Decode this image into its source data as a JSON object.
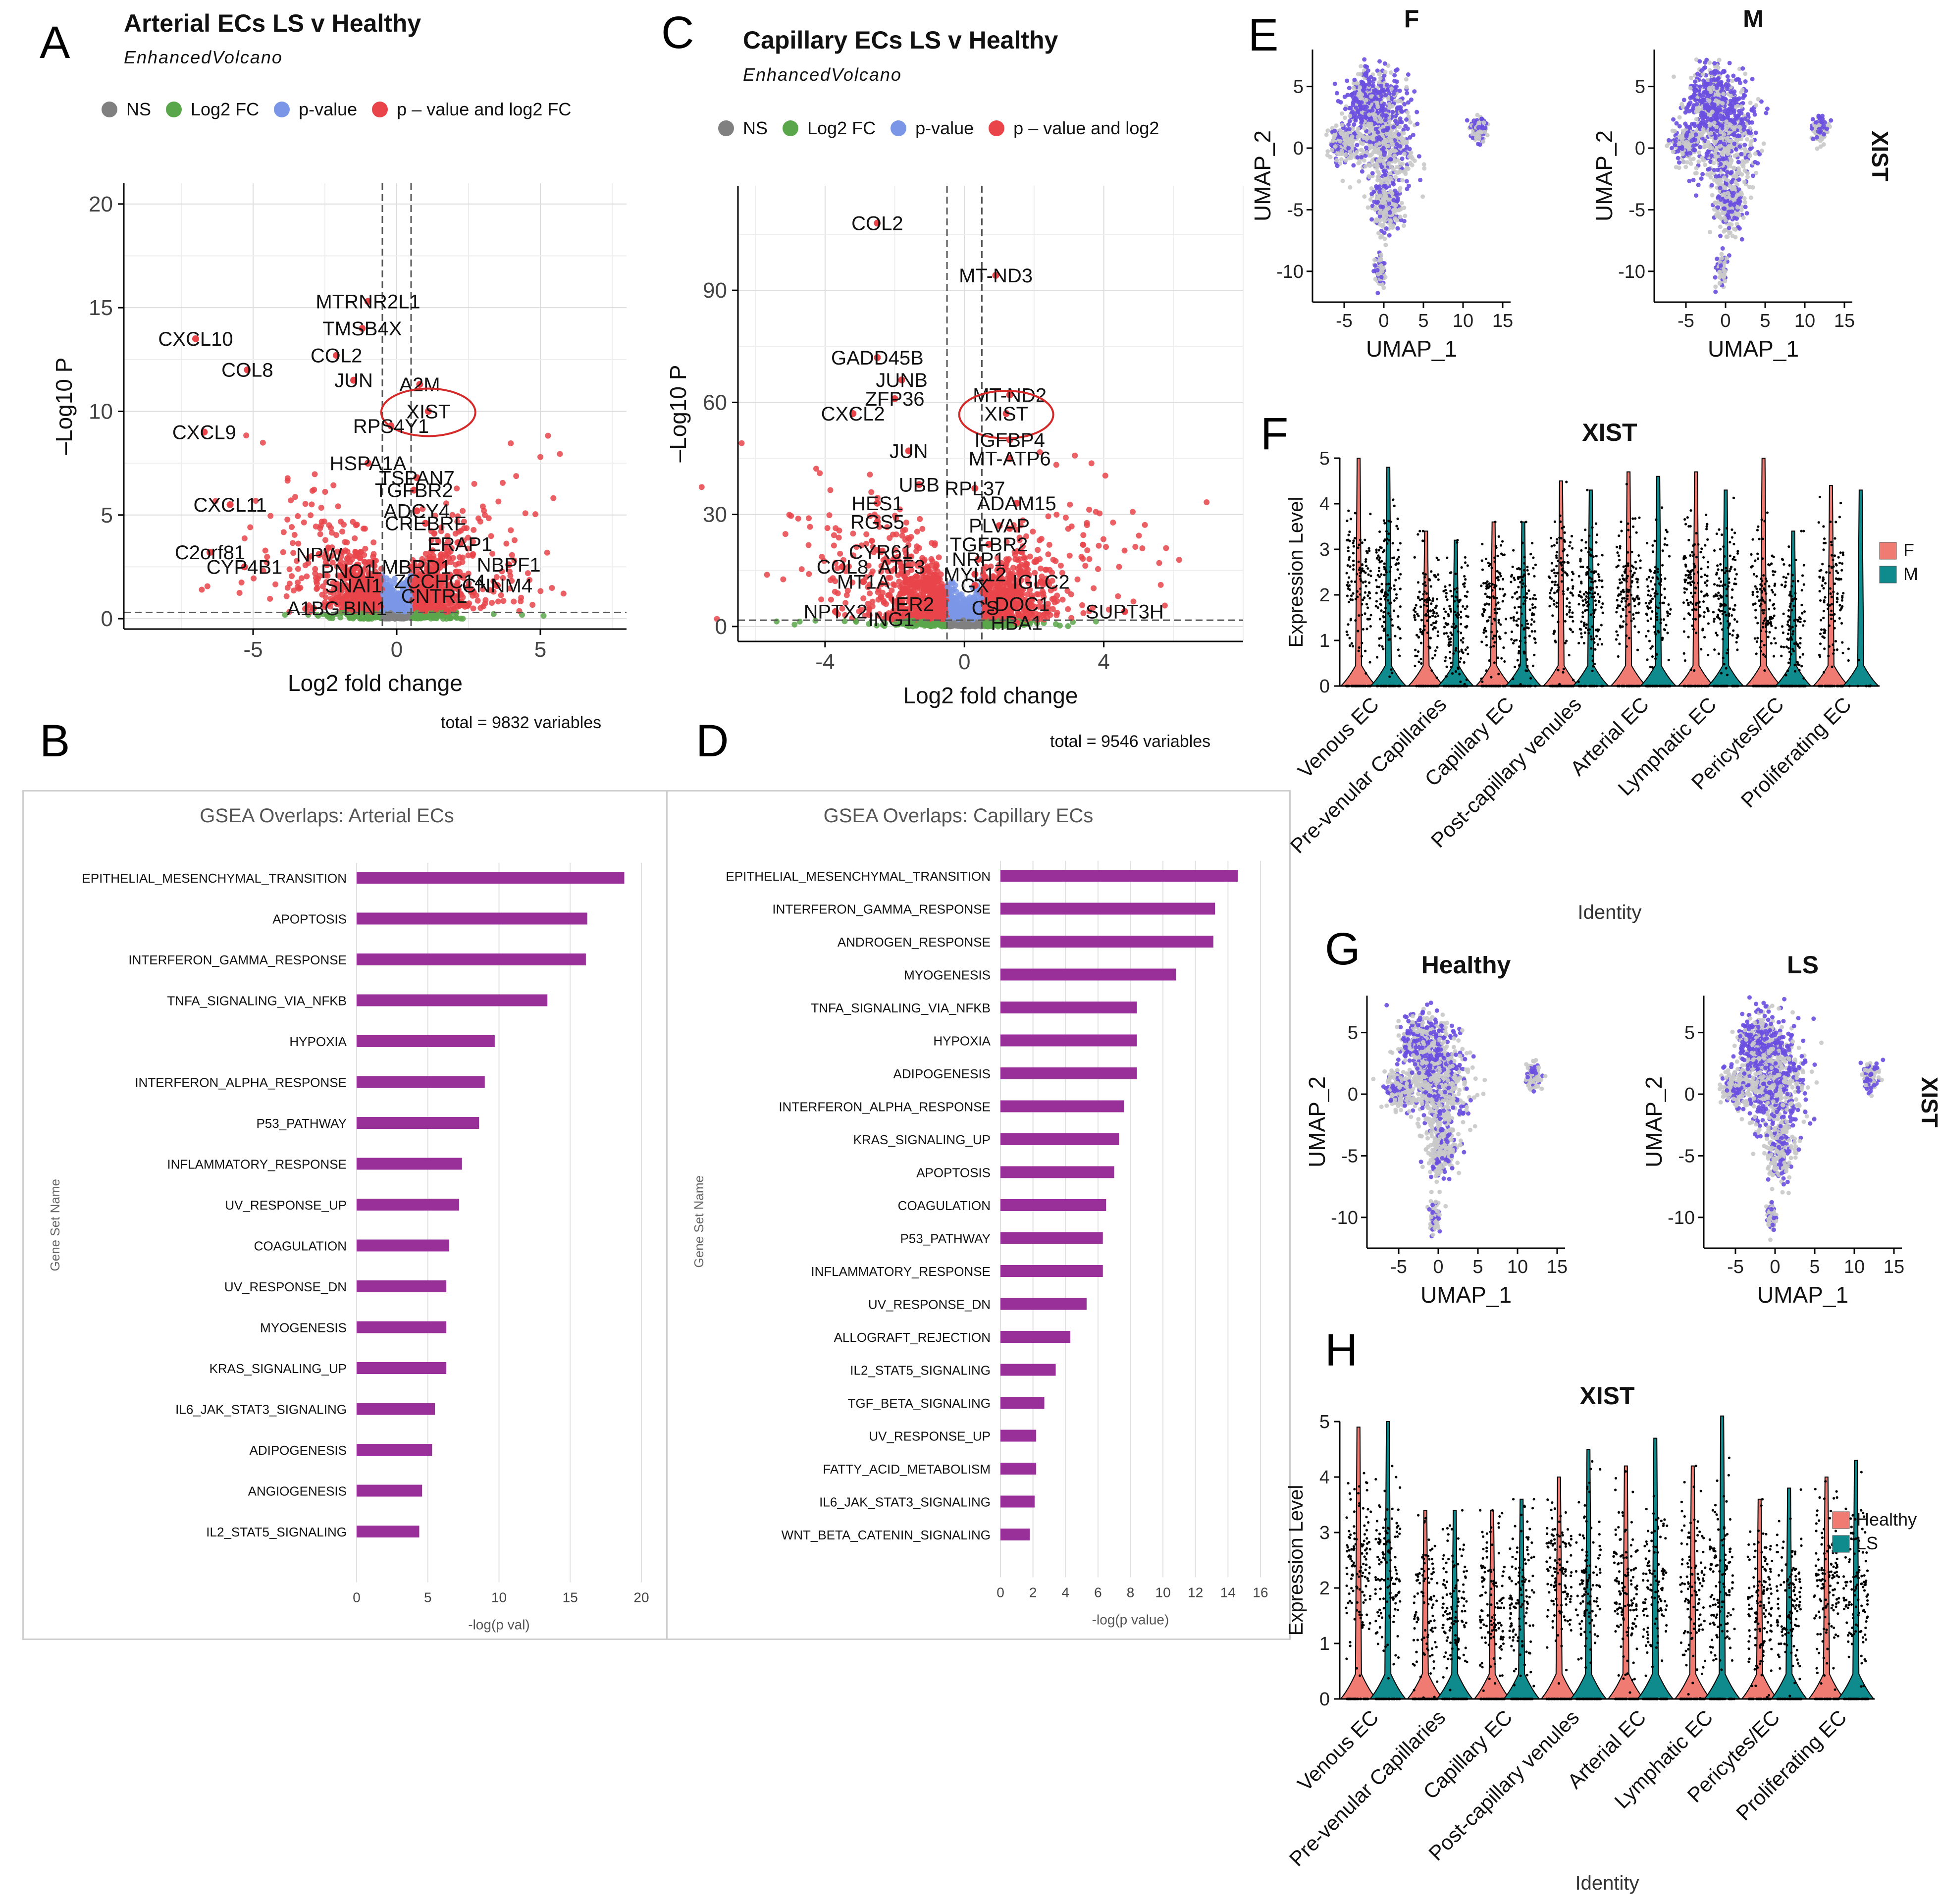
{
  "panels": {
    "A": "A",
    "B": "B",
    "C": "C",
    "D": "D",
    "E": "E",
    "F": "F",
    "G": "G",
    "H": "H"
  },
  "volcano_A": {
    "title": "Arterial ECs LS v Healthy",
    "subtitle": "EnhancedVolcano",
    "legend": [
      "NS",
      "Log2 FC",
      "p-value",
      "p – value and log2 FC"
    ],
    "legend_colors": [
      "#808080",
      "#5aa64a",
      "#7b96e6",
      "#e8444a"
    ],
    "xlabel": "Log2 fold change",
    "ylabel": "–Log10 P",
    "total": "total = 9832 variables",
    "xticks": [
      "-5",
      "0",
      "5"
    ],
    "yticks": [
      "0",
      "5",
      "10",
      "15",
      "20"
    ]
  },
  "volcano_C": {
    "title": "Capillary ECs LS v Healthy",
    "subtitle": "EnhancedVolcano",
    "legend": [
      "NS",
      "Log2 FC",
      "p-value",
      "p – value and log2"
    ],
    "xlabel": "Log2 fold change",
    "ylabel": "–Log10 P",
    "total": "total = 9546 variables",
    "xticks": [
      "-4",
      "0",
      "4"
    ],
    "yticks": [
      "0",
      "30",
      "60",
      "90"
    ]
  },
  "chart_data": [
    {
      "type": "scatter",
      "title": "Arterial ECs LS v Healthy",
      "xlabel": "Log2 fold change",
      "ylabel": "-Log10 P",
      "xlim": [
        -9.5,
        8
      ],
      "ylim": [
        -0.5,
        21
      ],
      "thresholds": {
        "fc": [
          -0.5,
          0.5
        ],
        "p": 0.3
      },
      "labeled_points": [
        {
          "label": "MTRNR2L1",
          "x": -1.0,
          "y": 15.3
        },
        {
          "label": "TMSB4X",
          "x": -1.2,
          "y": 14.0
        },
        {
          "label": "CXCL10",
          "x": -7.0,
          "y": 13.5
        },
        {
          "label": "COL2",
          "x": -2.1,
          "y": 12.7
        },
        {
          "label": "COL8",
          "x": -5.2,
          "y": 12.0
        },
        {
          "label": "JUN",
          "x": -1.5,
          "y": 11.5
        },
        {
          "label": "A2M",
          "x": 0.8,
          "y": 11.3
        },
        {
          "label": "XIST",
          "x": 1.1,
          "y": 10.0
        },
        {
          "label": "RPS4Y1",
          "x": -0.2,
          "y": 9.3
        },
        {
          "label": "CXCL9",
          "x": -6.7,
          "y": 9.0
        },
        {
          "label": "HSPA1A",
          "x": -1.0,
          "y": 7.5
        },
        {
          "label": "TSPAN7",
          "x": 0.7,
          "y": 6.8
        },
        {
          "label": "TGFBR2",
          "x": 0.6,
          "y": 6.2
        },
        {
          "label": "CXCL11",
          "x": -5.8,
          "y": 5.5
        },
        {
          "label": "ADCY4",
          "x": 0.7,
          "y": 5.2
        },
        {
          "label": "CREBRF",
          "x": 1.0,
          "y": 4.6
        },
        {
          "label": "ERAP1",
          "x": 2.2,
          "y": 3.6
        },
        {
          "label": "C2orf81",
          "x": -6.5,
          "y": 3.2
        },
        {
          "label": "NPW",
          "x": -2.7,
          "y": 3.1
        },
        {
          "label": "NBPF1",
          "x": 3.9,
          "y": 2.6
        },
        {
          "label": "CYP4B1",
          "x": -5.3,
          "y": 2.5
        },
        {
          "label": "PNO1",
          "x": -1.7,
          "y": 2.3
        },
        {
          "label": "LMBRD1",
          "x": 0.5,
          "y": 2.5
        },
        {
          "label": "ZCCHC14",
          "x": 1.5,
          "y": 1.8
        },
        {
          "label": "CNNM4",
          "x": 3.5,
          "y": 1.6
        },
        {
          "label": "SNAI1",
          "x": -1.5,
          "y": 1.6
        },
        {
          "label": "CNTRL",
          "x": 1.3,
          "y": 1.1
        },
        {
          "label": "A1BG",
          "x": -2.9,
          "y": 0.5
        },
        {
          "label": "BIN1",
          "x": -1.1,
          "y": 0.5
        }
      ],
      "circled": "XIST",
      "total_variables": 9832
    },
    {
      "type": "scatter",
      "title": "Capillary ECs LS v Healthy",
      "xlabel": "Log2 fold change",
      "ylabel": "-Log10 P",
      "xlim": [
        -6.5,
        8
      ],
      "ylim": [
        -4,
        118
      ],
      "thresholds": {
        "fc": [
          -0.5,
          0.5
        ],
        "p": 0.3
      },
      "labeled_points": [
        {
          "label": "COL2",
          "x": -2.5,
          "y": 108
        },
        {
          "label": "MT-ND3",
          "x": 0.9,
          "y": 94
        },
        {
          "label": "GADD45B",
          "x": -2.5,
          "y": 72
        },
        {
          "label": "JUNB",
          "x": -1.8,
          "y": 66
        },
        {
          "label": "MT-ND2",
          "x": 1.3,
          "y": 62
        },
        {
          "label": "ZFP36",
          "x": -2.0,
          "y": 61
        },
        {
          "label": "XIST",
          "x": 1.2,
          "y": 57
        },
        {
          "label": "CXCL2",
          "x": -3.2,
          "y": 57
        },
        {
          "label": "IGFBP4",
          "x": 1.3,
          "y": 50
        },
        {
          "label": "JUN",
          "x": -1.6,
          "y": 47
        },
        {
          "label": "MT-ATP6",
          "x": 1.3,
          "y": 45
        },
        {
          "label": "UBB",
          "x": -1.3,
          "y": 38
        },
        {
          "label": "RPL37",
          "x": 0.3,
          "y": 37
        },
        {
          "label": "HES1",
          "x": -2.5,
          "y": 33
        },
        {
          "label": "ADAM15",
          "x": 1.5,
          "y": 33
        },
        {
          "label": "RGS5",
          "x": -2.5,
          "y": 28
        },
        {
          "label": "PLVAP",
          "x": 1.0,
          "y": 27
        },
        {
          "label": "TGFBR2",
          "x": 0.7,
          "y": 22
        },
        {
          "label": "CYR61",
          "x": -2.4,
          "y": 20
        },
        {
          "label": "NRP1",
          "x": 0.4,
          "y": 18
        },
        {
          "label": "ATF3",
          "x": -1.8,
          "y": 16
        },
        {
          "label": "COL8",
          "x": -3.5,
          "y": 16
        },
        {
          "label": "MYL12",
          "x": 0.3,
          "y": 14
        },
        {
          "label": "MT1A",
          "x": -2.9,
          "y": 12
        },
        {
          "label": "GX",
          "x": 0.3,
          "y": 11
        },
        {
          "label": "IGLC2",
          "x": 2.2,
          "y": 12
        },
        {
          "label": "IER2",
          "x": -1.5,
          "y": 6
        },
        {
          "label": "LDOC1",
          "x": 1.5,
          "y": 6
        },
        {
          "label": "CS",
          "x": 0.6,
          "y": 5
        },
        {
          "label": "SUPT3H",
          "x": 4.6,
          "y": 4
        },
        {
          "label": "NPTX2",
          "x": -3.7,
          "y": 4
        },
        {
          "label": "HBA1",
          "x": 1.5,
          "y": 1
        },
        {
          "label": "ING1",
          "x": -2.1,
          "y": 2
        }
      ],
      "circled": "XIST",
      "total_variables": 9546
    },
    {
      "type": "bar",
      "orientation": "horizontal",
      "title": "GSEA Overlaps:  Arterial ECs",
      "xlabel": "-log(p val)",
      "ylabel": "Gene Set Name",
      "xlim": [
        0,
        20
      ],
      "xticks": [
        "0",
        "5",
        "10",
        "15",
        "20"
      ],
      "color": "#992f99",
      "categories": [
        "EPITHELIAL_MESENCHYMAL_TRANSITION",
        "APOPTOSIS",
        "INTERFERON_GAMMA_RESPONSE",
        "TNFA_SIGNALING_VIA_NFKB",
        "HYPOXIA",
        "INTERFERON_ALPHA_RESPONSE",
        "P53_PATHWAY",
        "INFLAMMATORY_RESPONSE",
        "UV_RESPONSE_UP",
        "COAGULATION",
        "UV_RESPONSE_DN",
        "MYOGENESIS",
        "KRAS_SIGNALING_UP",
        "IL6_JAK_STAT3_SIGNALING",
        "ADIPOGENESIS",
        "ANGIOGENESIS",
        "IL2_STAT5_SIGNALING"
      ],
      "values": [
        18.8,
        16.2,
        16.1,
        13.4,
        9.7,
        9.0,
        8.6,
        7.4,
        7.2,
        6.5,
        6.3,
        6.3,
        6.3,
        5.5,
        5.3,
        4.6,
        4.4
      ]
    },
    {
      "type": "bar",
      "orientation": "horizontal",
      "title": "GSEA Overlaps: Capillary ECs",
      "xlabel": "-log(p value)",
      "ylabel": "Gene Set Name",
      "xlim": [
        0,
        16
      ],
      "xticks": [
        "0",
        "2",
        "4",
        "6",
        "8",
        "10",
        "12",
        "14",
        "16"
      ],
      "color": "#992f99",
      "categories": [
        "EPITHELIAL_MESENCHYMAL_TRANSITION",
        "INTERFERON_GAMMA_RESPONSE",
        "ANDROGEN_RESPONSE",
        "MYOGENESIS",
        "TNFA_SIGNALING_VIA_NFKB",
        "HYPOXIA",
        "ADIPOGENESIS",
        "INTERFERON_ALPHA_RESPONSE",
        "KRAS_SIGNALING_UP",
        "APOPTOSIS",
        "COAGULATION",
        "P53_PATHWAY",
        "INFLAMMATORY_RESPONSE",
        "UV_RESPONSE_DN",
        "ALLOGRAFT_REJECTION",
        "IL2_STAT5_SIGNALING",
        "TGF_BETA_SIGNALING",
        "UV_RESPONSE_UP",
        "FATTY_ACID_METABOLISM",
        "IL6_JAK_STAT3_SIGNALING",
        "WNT_BETA_CATENIN_SIGNALING"
      ],
      "values": [
        14.6,
        13.2,
        13.1,
        10.8,
        8.4,
        8.4,
        8.4,
        7.6,
        7.3,
        7.0,
        6.5,
        6.3,
        6.3,
        5.3,
        4.3,
        3.4,
        2.7,
        2.2,
        2.2,
        2.1,
        1.8
      ]
    },
    {
      "type": "scatter",
      "title": "UMAP XIST by sex",
      "facets": [
        "F",
        "M"
      ],
      "xlabel": "UMAP_1",
      "ylabel": "UMAP_2",
      "feature": "XIST",
      "xticks": [
        "-5",
        "0",
        "5",
        "10",
        "15"
      ],
      "yticks": [
        "5",
        "0",
        "-5",
        "-10"
      ]
    },
    {
      "type": "violin",
      "title": "XIST",
      "xlabel": "Identity",
      "ylabel": "Expression Level",
      "ylim": [
        0,
        5
      ],
      "yticks": [
        "0",
        "1",
        "2",
        "3",
        "4",
        "5"
      ],
      "categories": [
        "Venous EC",
        "Pre-venular Capillaries",
        "Capillary EC",
        "Post-capillary venules",
        "Arterial EC",
        "Lymphatic EC",
        "Pericytes/EC",
        "Proliferating EC"
      ],
      "legend": [
        "F",
        "M"
      ],
      "legend_colors": [
        "#f07b72",
        "#0f8b8d"
      ],
      "series": [
        {
          "name": "F",
          "median": [
            2.4,
            1.6,
            1.9,
            2.2,
            2.1,
            2.2,
            1.9,
            2.1
          ],
          "max": [
            5.0,
            3.4,
            3.6,
            4.5,
            4.7,
            4.7,
            5.0,
            4.4
          ]
        },
        {
          "name": "M",
          "median": [
            2.2,
            1.3,
            1.6,
            1.9,
            1.8,
            1.8,
            1.4,
            0.0
          ],
          "max": [
            4.8,
            3.2,
            3.6,
            4.3,
            4.6,
            4.3,
            3.4,
            4.3
          ]
        }
      ]
    },
    {
      "type": "scatter",
      "title": "UMAP XIST by condition",
      "facets": [
        "Healthy",
        "LS"
      ],
      "xlabel": "UMAP_1",
      "ylabel": "UMAP_2",
      "feature": "XIST",
      "xticks": [
        "-5",
        "0",
        "5",
        "10",
        "15"
      ],
      "yticks": [
        "5",
        "0",
        "-5",
        "-10"
      ]
    },
    {
      "type": "violin",
      "title": "XIST",
      "xlabel": "Identity",
      "ylabel": "Expression Level",
      "ylim": [
        0,
        5
      ],
      "yticks": [
        "0",
        "1",
        "2",
        "3",
        "4",
        "5"
      ],
      "categories": [
        "Venous EC",
        "Pre-venular Capillaries",
        "Capillary EC",
        "Post-capillary venules",
        "Arterial EC",
        "Lymphatic EC",
        "Pericytes/EC",
        "Proliferating EC"
      ],
      "legend": [
        "Healthy",
        "LS"
      ],
      "legend_colors": [
        "#f07b72",
        "#0f8b8d"
      ],
      "series": [
        {
          "name": "Healthy",
          "median": [
            2.4,
            1.7,
            1.8,
            2.2,
            2.0,
            2.1,
            1.8,
            2.2
          ],
          "max": [
            4.9,
            3.4,
            3.4,
            4.0,
            4.2,
            4.2,
            3.6,
            4.0
          ]
        },
        {
          "name": "LS",
          "median": [
            2.3,
            1.6,
            1.8,
            2.1,
            2.0,
            2.0,
            1.7,
            2.0
          ],
          "max": [
            5.0,
            3.4,
            3.6,
            4.5,
            4.7,
            5.1,
            3.8,
            4.3
          ]
        }
      ]
    }
  ],
  "umap_E": {
    "titles": [
      "F",
      "M"
    ],
    "feature": "XIST",
    "xlabel": "UMAP_1",
    "ylabel": "UMAP_2"
  },
  "umap_G": {
    "titles": [
      "Healthy",
      "LS"
    ],
    "feature": "XIST",
    "xlabel": "UMAP_1",
    "ylabel": "UMAP_2"
  },
  "violin_F": {
    "title": "XIST",
    "ylabel": "Expression Level",
    "xlabel": "Identity",
    "legend": [
      "F",
      "M"
    ]
  },
  "violin_H": {
    "title": "XIST",
    "ylabel": "Expression Level",
    "xlabel": "Identity",
    "legend": [
      "Healthy",
      "LS"
    ]
  }
}
